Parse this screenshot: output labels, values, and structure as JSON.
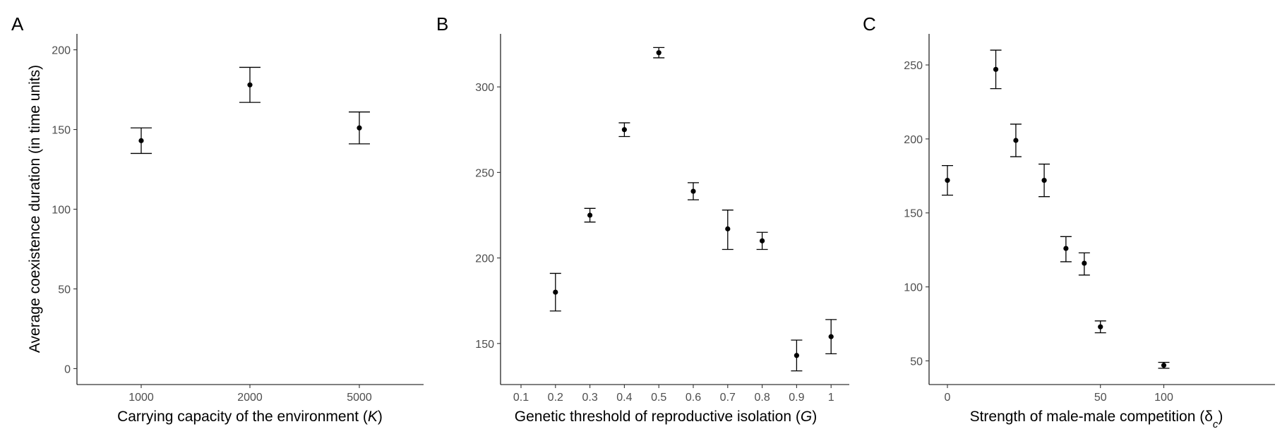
{
  "chart_data": [
    {
      "type": "scatter",
      "panel": "A",
      "title": "",
      "xlabel": "Carrying capacity of the environment (",
      "xlabel_var": "K",
      "xlabel_end": ")",
      "ylabel": "Average coexistence duration (in time units)",
      "categories": [
        "1000",
        "2000",
        "5000"
      ],
      "values": [
        143,
        178,
        151
      ],
      "lower": [
        135,
        167,
        141
      ],
      "upper": [
        151,
        189,
        161
      ],
      "ylim": [
        -10,
        210
      ],
      "yticks": [
        0,
        50,
        100,
        150,
        200
      ],
      "grid": false
    },
    {
      "type": "scatter",
      "panel": "B",
      "title": "",
      "xlabel": "Genetic threshold of reproductive isolation (",
      "xlabel_var": "G",
      "xlabel_end": ")",
      "ylabel": "",
      "categories": [
        "0.1",
        "0.2",
        "0.3",
        "0.4",
        "0.5",
        "0.6",
        "0.7",
        "0.8",
        "0.9",
        "1"
      ],
      "values": [
        null,
        180,
        225,
        275,
        320,
        239,
        217,
        210,
        143,
        154
      ],
      "lower": [
        null,
        169,
        221,
        271,
        317,
        234,
        205,
        205,
        134,
        144
      ],
      "upper": [
        null,
        191,
        229,
        279,
        323,
        244,
        228,
        215,
        152,
        164
      ],
      "ylim": [
        126,
        331
      ],
      "yticks": [
        150,
        200,
        250,
        300
      ],
      "grid": false
    },
    {
      "type": "scatter",
      "panel": "C",
      "title": "",
      "xlabel": "Strength of male-male competition (",
      "xlabel_var": "δ",
      "xlabel_sub": "c",
      "xlabel_end": ")",
      "ylabel": "",
      "x": [
        0,
        5,
        10,
        20,
        30,
        40,
        50,
        100
      ],
      "values": [
        172,
        247,
        199,
        172,
        126,
        116,
        73,
        47
      ],
      "lower": [
        162,
        234,
        188,
        161,
        117,
        108,
        69,
        45
      ],
      "upper": [
        182,
        260,
        210,
        183,
        134,
        123,
        77,
        49
      ],
      "xtick_labels": [
        "0",
        "50",
        "100"
      ],
      "xtick_values": [
        0,
        50,
        100
      ],
      "ylim": [
        34,
        271
      ],
      "yticks": [
        50,
        100,
        150,
        200,
        250
      ],
      "grid": false
    }
  ]
}
